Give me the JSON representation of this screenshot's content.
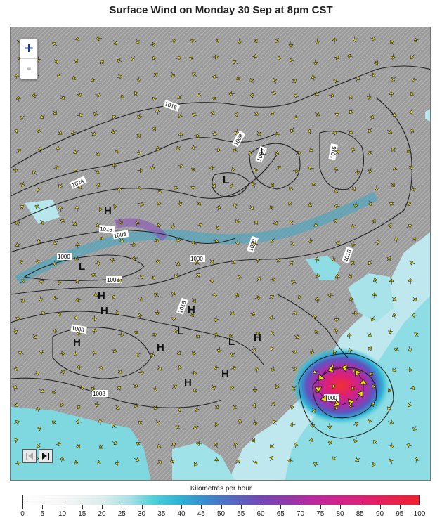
{
  "title": "Surface Wind on Monday 30 Sep at 8pm CST",
  "zoom": {
    "in_label": "+",
    "out_label": "-"
  },
  "legend": {
    "title": "Kilometres per hour",
    "ticks": [
      "0",
      "5",
      "10",
      "15",
      "20",
      "25",
      "30",
      "35",
      "40",
      "45",
      "50",
      "55",
      "60",
      "65",
      "70",
      "75",
      "80",
      "85",
      "90",
      "95",
      "100"
    ]
  },
  "isobar_labels": [
    "1016",
    "1008",
    "1024",
    "1016",
    "1008",
    "1000",
    "1008",
    "1000",
    "1016",
    "1008",
    "1016",
    "1008",
    "1016",
    "1008",
    "1000",
    "1000"
  ],
  "pressure_centres": [
    "L",
    "L",
    "L",
    "L",
    "L",
    "H",
    "H",
    "H",
    "H",
    "H",
    "H",
    "H",
    "H",
    "H"
  ],
  "colors": {
    "land": "#9a9a9a",
    "sea_calm": "#cfeef2",
    "sea_mid": "#4cd0d8",
    "typhoon_core": "#e02070",
    "isobar": "#222222",
    "wind_arrow": "#f5e400"
  }
}
